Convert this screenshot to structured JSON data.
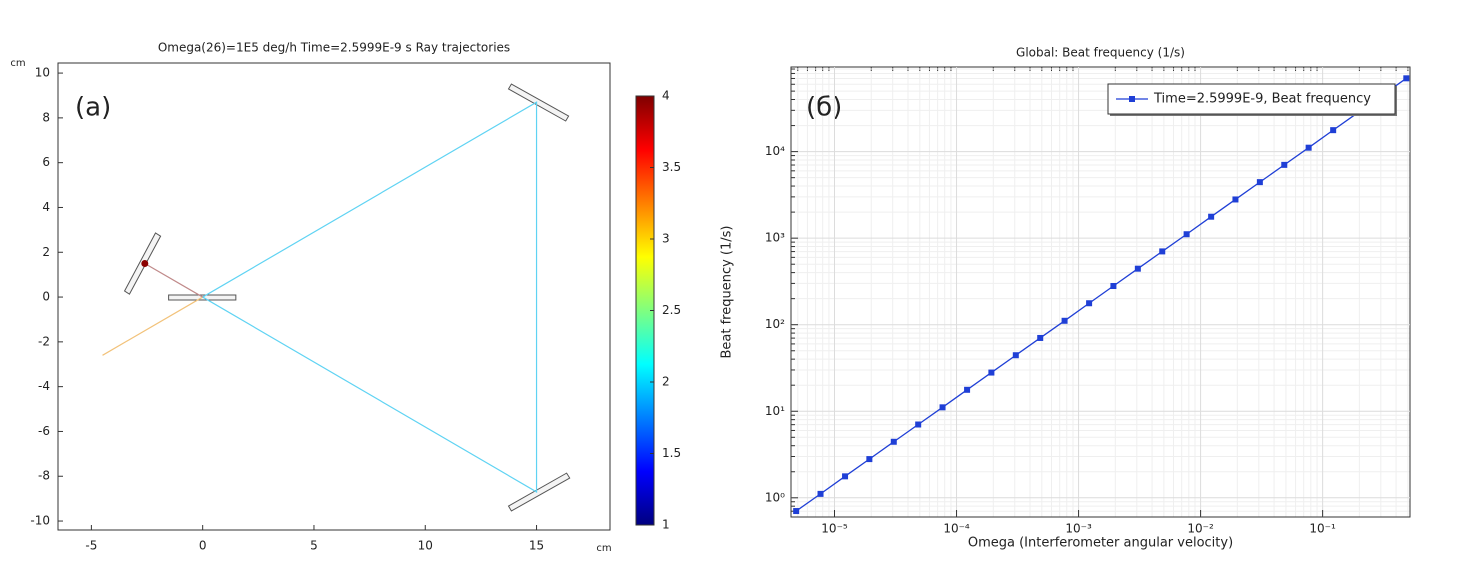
{
  "chart_data": [
    {
      "type": "rays",
      "title": "Omega(26)=1E5 deg/h Time=2.5999E-9 s  Ray trajectories",
      "panel_label": "(a)",
      "xunit": "cm",
      "yunit": "cm",
      "xlim": [
        -6.5,
        18.3
      ],
      "ylim": [
        -10.4,
        10.45
      ],
      "xticks": [
        -5,
        0,
        5,
        10,
        15
      ],
      "yticks": [
        -10,
        -8,
        -6,
        -4,
        -2,
        0,
        2,
        4,
        6,
        8,
        10
      ],
      "series": [
        {
          "color": "#f2c27a",
          "x": [
            -4.5,
            0
          ],
          "y": [
            -2.6,
            0
          ]
        },
        {
          "color": "#5fd3f3",
          "x": [
            0,
            15,
            15,
            0
          ],
          "y": [
            0,
            8.7,
            -8.7,
            0
          ]
        },
        {
          "color": "#c08a8a",
          "x": [
            0,
            -2.6
          ],
          "y": [
            0,
            1.5
          ]
        }
      ],
      "points": [
        {
          "x": -2.6,
          "y": 1.5,
          "color": "#8b0000"
        }
      ],
      "shapes": [
        {
          "x": [
            13.87,
            16.44,
            16.31,
            13.74
          ],
          "y": [
            9.51,
            8.08,
            7.86,
            9.29
          ]
        },
        {
          "x": [
            13.74,
            16.35,
            16.49,
            13.87
          ],
          "y": [
            -9.33,
            -7.86,
            -8.08,
            -9.55
          ]
        },
        {
          "x": [
            -3.51,
            -2.12,
            -1.89,
            -3.29
          ],
          "y": [
            0.27,
            2.86,
            2.72,
            0.13
          ]
        },
        {
          "x": [
            -1.53,
            1.49,
            1.49,
            -1.53
          ],
          "y": [
            0.09,
            0.09,
            -0.13,
            -0.13
          ]
        }
      ],
      "colorbar": {
        "colormap": "jet",
        "lim": [
          1,
          4
        ],
        "ticks": [
          1,
          1.5,
          2,
          2.5,
          3,
          3.5,
          4
        ]
      }
    },
    {
      "type": "line",
      "title": "Global: Beat frequency (1/s)",
      "panel_label": "(б)",
      "xlabel": "Omega (Interferometer angular velocity)",
      "ylabel": "Beat frequency (1/s)",
      "xlog": true,
      "ylog": true,
      "grid": true,
      "legend": "upper right",
      "xlim": [
        4.4e-06,
        0.52
      ],
      "ylim": [
        0.6,
        95000
      ],
      "xticks": [
        {
          "value": 1e-05,
          "label": "10⁻⁵"
        },
        {
          "value": 0.0001,
          "label": "10⁻⁴"
        },
        {
          "value": 0.001,
          "label": "10⁻³"
        },
        {
          "value": 0.01,
          "label": "10⁻²"
        },
        {
          "value": 0.1,
          "label": "10⁻¹"
        }
      ],
      "yticks": [
        {
          "value": 1,
          "label": "10⁰"
        },
        {
          "value": 10,
          "label": "10¹"
        },
        {
          "value": 100,
          "label": "10²"
        },
        {
          "value": 1000,
          "label": "10³"
        },
        {
          "value": 10000,
          "label": "10⁴"
        }
      ],
      "x": [
        4.85e-06,
        7.68e-06,
        1.22e-05,
        1.93e-05,
        3.06e-05,
        4.85e-05,
        7.68e-05,
        0.000122,
        0.000193,
        0.000306,
        0.000485,
        0.000768,
        0.00122,
        0.00193,
        0.00306,
        0.00485,
        0.00768,
        0.0122,
        0.0193,
        0.0306,
        0.0485,
        0.0768,
        0.122,
        0.193,
        0.306,
        0.485
      ],
      "series": [
        {
          "name": "Time=2.5999E-9, Beat frequency",
          "color": "#1f3fd6",
          "values": [
            0.703,
            1.11,
            1.77,
            2.8,
            4.44,
            7.03,
            11.1,
            17.7,
            28,
            44.4,
            70.3,
            111,
            177,
            280,
            444,
            703,
            1110,
            1770,
            2800,
            4440,
            7030,
            11100,
            17700,
            28000,
            44400,
            70300
          ]
        }
      ]
    }
  ]
}
